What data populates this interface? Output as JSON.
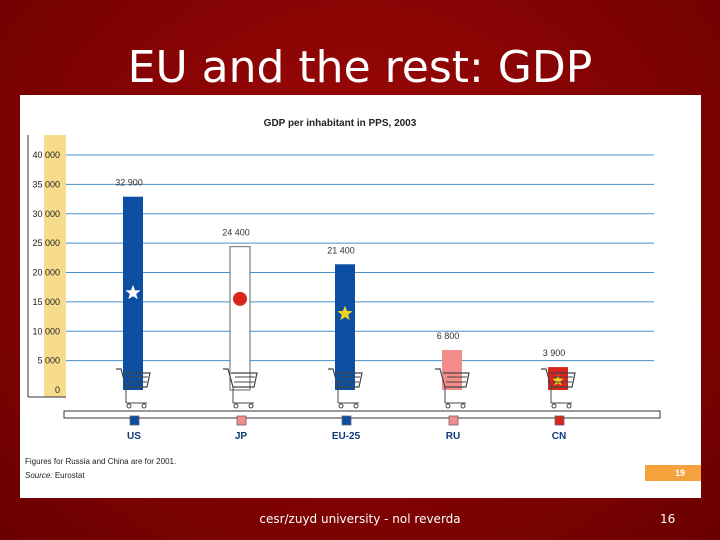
{
  "slide": {
    "title": "EU and the rest: GDP",
    "footer": "cesr/zuyd university - nol reverda",
    "page_number": "16"
  },
  "figure": {
    "note": "Figures for Russia and China are for 2001.",
    "source_label": "Source:",
    "source_name": "Eurostat",
    "figure_number": "19"
  },
  "colors": {
    "background": "#8a0404",
    "gridline": "#4a8fc8",
    "axis_band": "#f6dc8c",
    "bar_blue": "#0c4ea2",
    "bar_pink": "#f48c8c",
    "bar_red": "#d8261e",
    "bar_white": "#ffffff",
    "badge_orange": "#f6a23c"
  },
  "chart_data": {
    "type": "bar",
    "title": "GDP per inhabitant in PPS, 2003",
    "xlabel": "",
    "ylabel": "",
    "ylim": [
      0,
      40000
    ],
    "yticks": [
      "0",
      "5 000",
      "10 000",
      "15 000",
      "20 000",
      "25 000",
      "30 000",
      "35 000",
      "40 000"
    ],
    "grid": true,
    "categories": [
      "US",
      "JP",
      "EU-25",
      "RU",
      "CN"
    ],
    "values": [
      32900,
      24400,
      21400,
      6800,
      3900
    ],
    "value_labels": [
      "32 900",
      "24 400",
      "21 400",
      "6 800",
      "3 900"
    ],
    "bar_colors": [
      "#0c4ea2",
      "#ffffff",
      "#0c4ea2",
      "#f48c8c",
      "#d8261e"
    ],
    "emblems": [
      "white-star",
      "red-disc",
      "gold-star",
      "none",
      "gold-star"
    ]
  }
}
